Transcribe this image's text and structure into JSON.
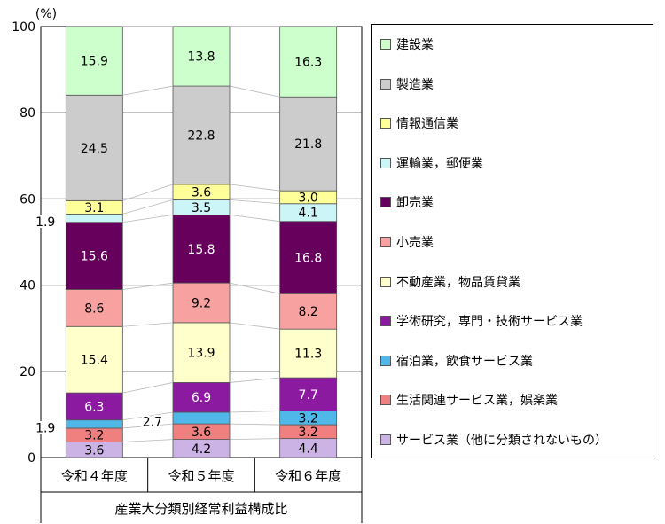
{
  "chart_data": {
    "type": "bar",
    "stacked": true,
    "y_unit_label": "(%)",
    "ylim": [
      0,
      100
    ],
    "yticks": [
      0,
      20,
      40,
      60,
      80,
      100
    ],
    "categories": [
      "令和４年度",
      "令和５年度",
      "令和６年度"
    ],
    "xlabel": "産業大分類別経常利益構成比",
    "legend_position": "right",
    "series": [
      {
        "name": "サービス業（他に分類されないもの）",
        "color": "#ccb3e6",
        "values": [
          3.6,
          4.2,
          4.4
        ],
        "labels": [
          "3.6",
          "4.2",
          "4.4"
        ]
      },
      {
        "name": "生活関連サービス業，娯楽業",
        "color": "#f08080",
        "values": [
          3.2,
          3.6,
          3.2
        ],
        "labels": [
          "3.2",
          "3.6",
          "3.2"
        ]
      },
      {
        "name": "宿泊業，飲食サービス業",
        "color": "#4fb8e8",
        "values": [
          1.9,
          2.7,
          3.2
        ],
        "labels": [
          "1.9",
          "2.7",
          "3.2"
        ]
      },
      {
        "name": "学術研究，専門・技術サービス業",
        "color": "#8c1aa0",
        "values": [
          6.3,
          6.9,
          7.7
        ],
        "labels": [
          "6.3",
          "6.9",
          "7.7"
        ]
      },
      {
        "name": "不動産業，物品賃貸業",
        "color": "#ffffcc",
        "values": [
          15.4,
          13.9,
          11.3
        ],
        "labels": [
          "15.4",
          "13.9",
          "11.3"
        ]
      },
      {
        "name": "小売業",
        "color": "#f7a1a1",
        "values": [
          8.6,
          9.2,
          8.2
        ],
        "labels": [
          "8.6",
          "9.2",
          "8.2"
        ]
      },
      {
        "name": "卸売業",
        "color": "#66005c",
        "values": [
          15.6,
          15.8,
          16.8
        ],
        "labels": [
          "15.6",
          "15.8",
          "16.8"
        ]
      },
      {
        "name": "運輸業，郵便業",
        "color": "#ccf5f7",
        "values": [
          1.9,
          3.5,
          4.1
        ],
        "labels": [
          "1.9",
          "3.5",
          "4.1"
        ]
      },
      {
        "name": "情報通信業",
        "color": "#ffff99",
        "values": [
          3.1,
          3.6,
          3.0
        ],
        "labels": [
          "3.1",
          "3.6",
          "3.0"
        ]
      },
      {
        "name": "製造業",
        "color": "#cccccc",
        "values": [
          24.5,
          22.8,
          21.8
        ],
        "labels": [
          "24.5",
          "22.8",
          "21.8"
        ]
      },
      {
        "name": "建設業",
        "color": "#ccffcc",
        "values": [
          15.9,
          13.8,
          16.3
        ],
        "labels": [
          "15.9",
          "13.8",
          "16.3"
        ]
      }
    ]
  }
}
